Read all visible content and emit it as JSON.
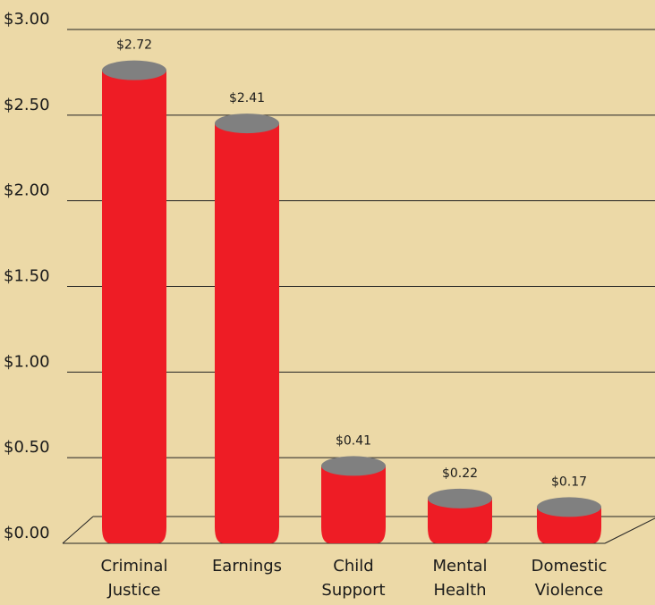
{
  "chart_data": {
    "type": "bar",
    "categories": [
      "Criminal Justice",
      "Earnings",
      "Child Support",
      "Mental Health",
      "Domestic Violence"
    ],
    "values": [
      2.72,
      2.41,
      0.41,
      0.22,
      0.17
    ],
    "value_labels": [
      "$2.72",
      "$2.41",
      "$0.41",
      "$0.22",
      "$0.17"
    ],
    "color": "#ee1c25",
    "top_color": "#808080",
    "ylim": [
      0,
      3
    ],
    "yticks": [
      {
        "value": 0,
        "label": "$0.00"
      },
      {
        "value": 0.5,
        "label": "$0.50"
      },
      {
        "value": 1,
        "label": "$1.00"
      },
      {
        "value": 1.5,
        "label": "$1.50"
      },
      {
        "value": 2,
        "label": "$2.00"
      },
      {
        "value": 2.5,
        "label": "$2.50"
      },
      {
        "value": 3,
        "label": "$3.00"
      }
    ],
    "grid": true
  }
}
